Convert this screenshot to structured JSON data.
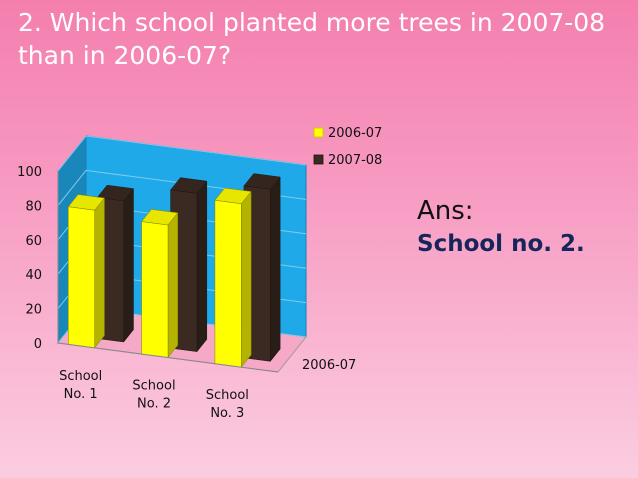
{
  "slide": {
    "title": "2. Which school planted more trees in 2007-08 than in 2006-07?",
    "answer_label": "Ans:",
    "answer_value": "School no. 2."
  },
  "chart_data": {
    "type": "bar",
    "style": "3d-clustered-column",
    "categories": [
      "School No. 1",
      "School No. 2",
      "School No. 3"
    ],
    "category_lines": [
      [
        "School",
        "No. 1"
      ],
      [
        "School",
        "No. 2"
      ],
      [
        "School",
        "No. 3"
      ]
    ],
    "series": [
      {
        "name": "2006-07",
        "color": "#ffff00",
        "values": [
          80,
          77,
          95
        ]
      },
      {
        "name": "2007-08",
        "color": "#3a2a22",
        "values": [
          82,
          92,
          100
        ]
      }
    ],
    "depth_label": "2006-07",
    "yticks": [
      0,
      20,
      40,
      60,
      80,
      100
    ],
    "ylim": [
      0,
      100
    ],
    "legend_position": "top-right",
    "wall_color": "#1fa9e8"
  }
}
